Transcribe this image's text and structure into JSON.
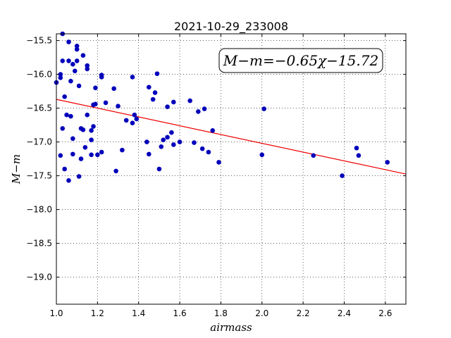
{
  "chart_data": {
    "type": "scatter",
    "title": "2021-10-29_233008",
    "xlabel": "airmass",
    "ylabel": "M−m",
    "xlim": [
      1.0,
      2.7
    ],
    "ylim": [
      -19.4,
      -15.4
    ],
    "y_inverted": true,
    "grid": true,
    "grid_style": "dotted",
    "xticks": [
      1.0,
      1.2,
      1.4,
      1.6,
      1.8,
      2.0,
      2.2,
      2.4,
      2.6
    ],
    "xtick_labels": [
      "1.0",
      "1.2",
      "1.4",
      "1.6",
      "1.8",
      "2.0",
      "2.2",
      "2.4",
      "2.6"
    ],
    "yticks": [
      -15.5,
      -16.0,
      -16.5,
      -17.0,
      -17.5,
      -18.0,
      -18.5,
      -19.0
    ],
    "ytick_labels": [
      "−15.5",
      "−16.0",
      "−16.5",
      "−17.0",
      "−17.5",
      "−18.0",
      "−18.5",
      "−19.0"
    ],
    "annotation": "M−m=−0.65χ−15.72",
    "point_color": "#0000bb",
    "fit_color": "#ee0000",
    "fit": {
      "slope": -0.65,
      "intercept": -15.72
    },
    "points": [
      {
        "x": 1.0,
        "y": -16.12
      },
      {
        "x": 1.02,
        "y": -16.0
      },
      {
        "x": 1.02,
        "y": -16.05
      },
      {
        "x": 1.03,
        "y": -15.4
      },
      {
        "x": 1.03,
        "y": -15.8
      },
      {
        "x": 1.04,
        "y": -16.33
      },
      {
        "x": 1.02,
        "y": -17.2
      },
      {
        "x": 1.03,
        "y": -16.8
      },
      {
        "x": 1.04,
        "y": -17.4
      },
      {
        "x": 1.05,
        "y": -16.6
      },
      {
        "x": 1.06,
        "y": -15.52
      },
      {
        "x": 1.06,
        "y": -15.8
      },
      {
        "x": 1.07,
        "y": -16.1
      },
      {
        "x": 1.07,
        "y": -16.62
      },
      {
        "x": 1.06,
        "y": -17.57
      },
      {
        "x": 1.08,
        "y": -15.85
      },
      {
        "x": 1.08,
        "y": -16.95
      },
      {
        "x": 1.08,
        "y": -17.18
      },
      {
        "x": 1.09,
        "y": -15.95
      },
      {
        "x": 1.1,
        "y": -15.58
      },
      {
        "x": 1.1,
        "y": -15.63
      },
      {
        "x": 1.1,
        "y": -15.8
      },
      {
        "x": 1.11,
        "y": -16.17
      },
      {
        "x": 1.12,
        "y": -16.8
      },
      {
        "x": 1.12,
        "y": -17.25
      },
      {
        "x": 1.11,
        "y": -17.51
      },
      {
        "x": 1.13,
        "y": -15.72
      },
      {
        "x": 1.13,
        "y": -16.82
      },
      {
        "x": 1.14,
        "y": -17.08
      },
      {
        "x": 1.15,
        "y": -15.87
      },
      {
        "x": 1.15,
        "y": -15.92
      },
      {
        "x": 1.15,
        "y": -16.6
      },
      {
        "x": 1.17,
        "y": -16.83
      },
      {
        "x": 1.17,
        "y": -16.97
      },
      {
        "x": 1.17,
        "y": -17.19
      },
      {
        "x": 1.18,
        "y": -16.45
      },
      {
        "x": 1.18,
        "y": -16.77
      },
      {
        "x": 1.19,
        "y": -16.2
      },
      {
        "x": 1.19,
        "y": -16.44
      },
      {
        "x": 1.2,
        "y": -17.19
      },
      {
        "x": 1.22,
        "y": -16.01
      },
      {
        "x": 1.22,
        "y": -16.04
      },
      {
        "x": 1.22,
        "y": -17.15
      },
      {
        "x": 1.24,
        "y": -16.42
      },
      {
        "x": 1.28,
        "y": -16.21
      },
      {
        "x": 1.29,
        "y": -17.43
      },
      {
        "x": 1.3,
        "y": -16.47
      },
      {
        "x": 1.32,
        "y": -17.12
      },
      {
        "x": 1.34,
        "y": -16.68
      },
      {
        "x": 1.37,
        "y": -16.04
      },
      {
        "x": 1.37,
        "y": -16.72
      },
      {
        "x": 1.38,
        "y": -16.6
      },
      {
        "x": 1.39,
        "y": -16.66
      },
      {
        "x": 1.44,
        "y": -17.0
      },
      {
        "x": 1.45,
        "y": -16.19
      },
      {
        "x": 1.45,
        "y": -17.18
      },
      {
        "x": 1.47,
        "y": -16.37
      },
      {
        "x": 1.48,
        "y": -16.27
      },
      {
        "x": 1.49,
        "y": -15.99
      },
      {
        "x": 1.5,
        "y": -17.4
      },
      {
        "x": 1.51,
        "y": -17.07
      },
      {
        "x": 1.52,
        "y": -16.97
      },
      {
        "x": 1.54,
        "y": -16.48
      },
      {
        "x": 1.54,
        "y": -16.93
      },
      {
        "x": 1.56,
        "y": -16.86
      },
      {
        "x": 1.57,
        "y": -16.41
      },
      {
        "x": 1.57,
        "y": -17.04
      },
      {
        "x": 1.6,
        "y": -17.0
      },
      {
        "x": 1.65,
        "y": -16.39
      },
      {
        "x": 1.67,
        "y": -17.01
      },
      {
        "x": 1.69,
        "y": -16.55
      },
      {
        "x": 1.71,
        "y": -17.1
      },
      {
        "x": 1.72,
        "y": -16.51
      },
      {
        "x": 1.74,
        "y": -17.15
      },
      {
        "x": 1.76,
        "y": -16.83
      },
      {
        "x": 1.79,
        "y": -17.3
      },
      {
        "x": 2.0,
        "y": -17.19
      },
      {
        "x": 2.01,
        "y": -16.51
      },
      {
        "x": 2.25,
        "y": -17.2
      },
      {
        "x": 2.39,
        "y": -17.5
      },
      {
        "x": 2.46,
        "y": -17.09
      },
      {
        "x": 2.47,
        "y": -17.2
      },
      {
        "x": 2.61,
        "y": -17.3
      }
    ]
  }
}
